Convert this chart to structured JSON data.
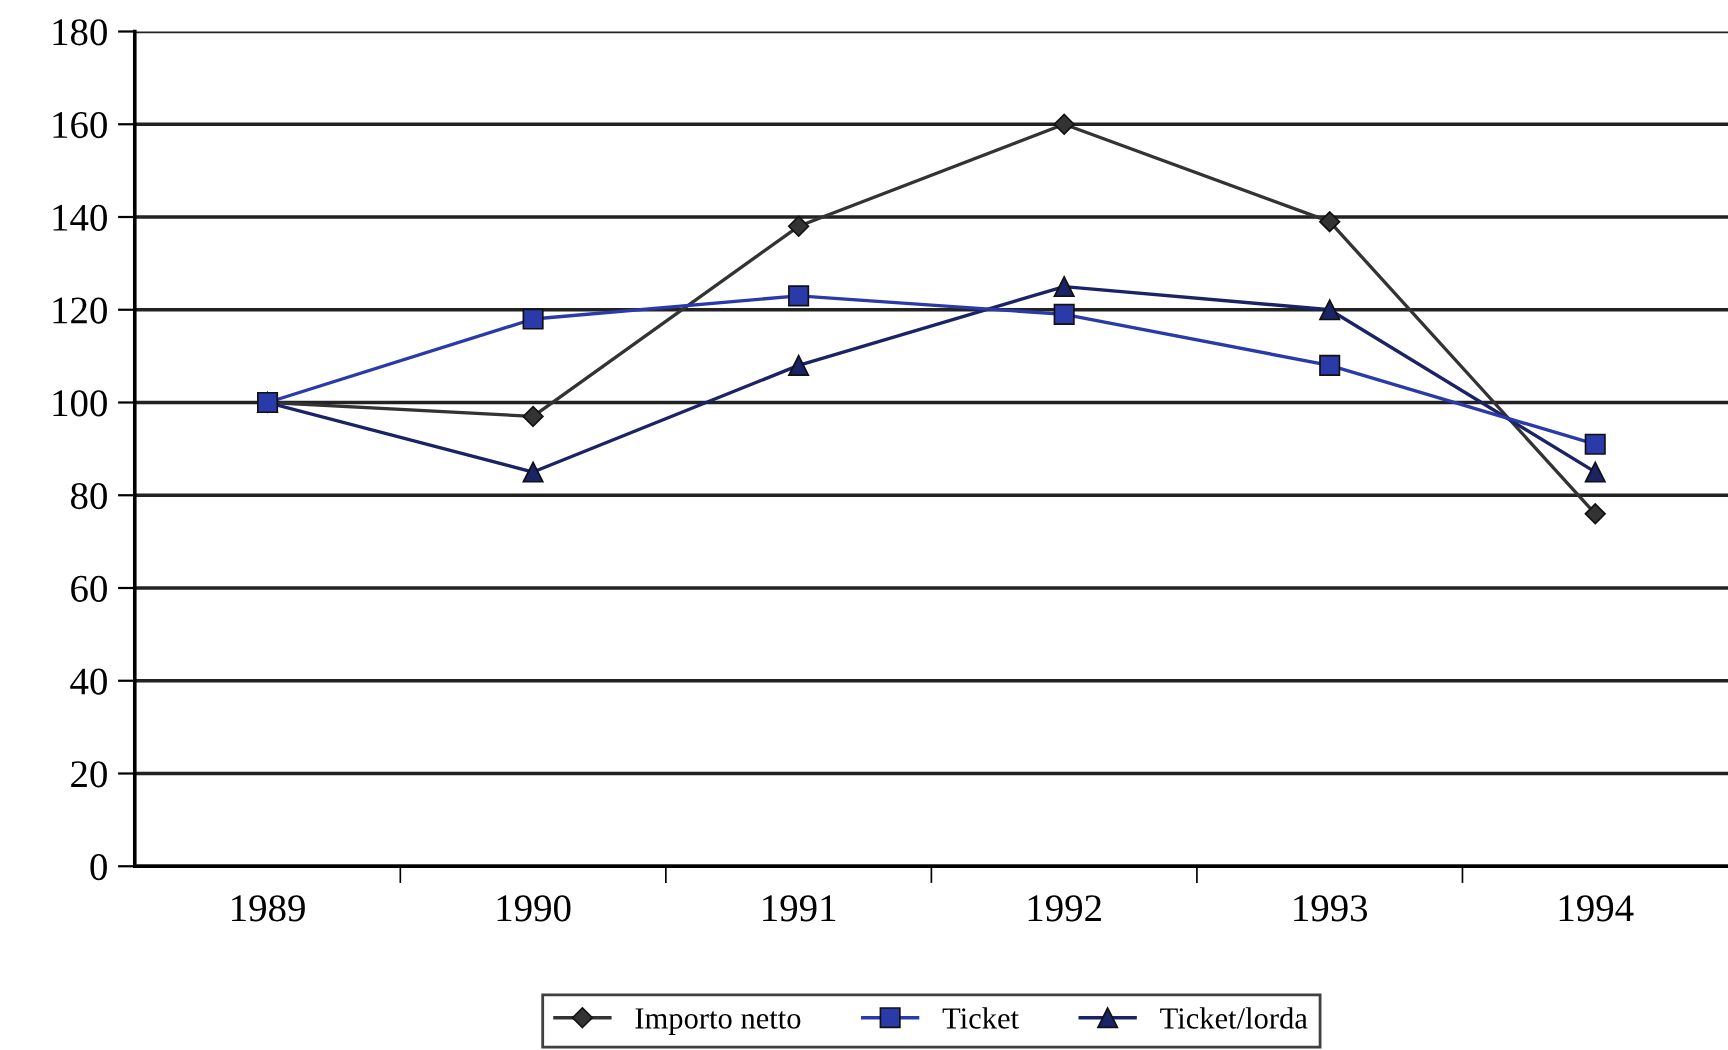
{
  "chart_data": {
    "type": "line",
    "categories": [
      "1989",
      "1990",
      "1991",
      "1992",
      "1993",
      "1994"
    ],
    "series": [
      {
        "name": "Importo netto",
        "color": "#333333",
        "marker": "diamond",
        "values": [
          100,
          97,
          138,
          160,
          139,
          76
        ]
      },
      {
        "name": "Ticket",
        "color": "#2a3aa8",
        "marker": "square",
        "values": [
          100,
          118,
          123,
          119,
          108,
          91
        ]
      },
      {
        "name": "Ticket/lorda",
        "color": "#1a2366",
        "marker": "triangle",
        "values": [
          100,
          85,
          108,
          125,
          120,
          85
        ]
      }
    ],
    "ylim": [
      0,
      180
    ],
    "yticks": [
      0,
      20,
      40,
      60,
      80,
      100,
      120,
      140,
      160,
      180
    ],
    "grid": "y",
    "legend": "bottom",
    "line_style": "solid"
  }
}
